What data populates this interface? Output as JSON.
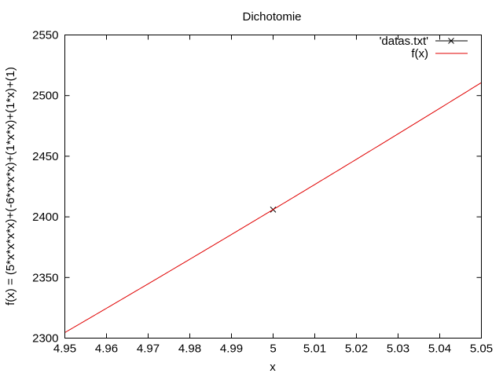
{
  "chart_data": {
    "type": "line",
    "title": "Dichotomie",
    "xlabel": "x",
    "ylabel": "f(x) = (5*x*x*x*x)+(-6*x*x*x)+(1*x*x)+(1*x)+(1)",
    "xlim": [
      4.95,
      5.05
    ],
    "ylim": [
      2300,
      2550
    ],
    "xticks": [
      4.95,
      4.96,
      4.97,
      4.98,
      4.99,
      5,
      5.01,
      5.02,
      5.03,
      5.04,
      5.05
    ],
    "xtick_labels": [
      "4.95",
      "4.96",
      "4.97",
      "4.98",
      "4.99",
      "5",
      "5.01",
      "5.02",
      "5.03",
      "5.04",
      "5.05"
    ],
    "yticks": [
      2300,
      2350,
      2400,
      2450,
      2500,
      2550
    ],
    "ytick_labels": [
      "2300",
      "2350",
      "2400",
      "2450",
      "2500",
      "2550"
    ],
    "grid": false,
    "legend_position": "top-right",
    "series": [
      {
        "name": "'datas.txt'",
        "kind": "points",
        "marker": "x",
        "color": "#000000",
        "points": [
          [
            5.0,
            2406
          ]
        ]
      },
      {
        "name": "f(x)",
        "kind": "function",
        "expression": "5*x^4 - 6*x^3 + x^2 + x + 1",
        "coefficients": [
          5,
          -6,
          1,
          1,
          1
        ],
        "color": "#e00000"
      }
    ]
  }
}
